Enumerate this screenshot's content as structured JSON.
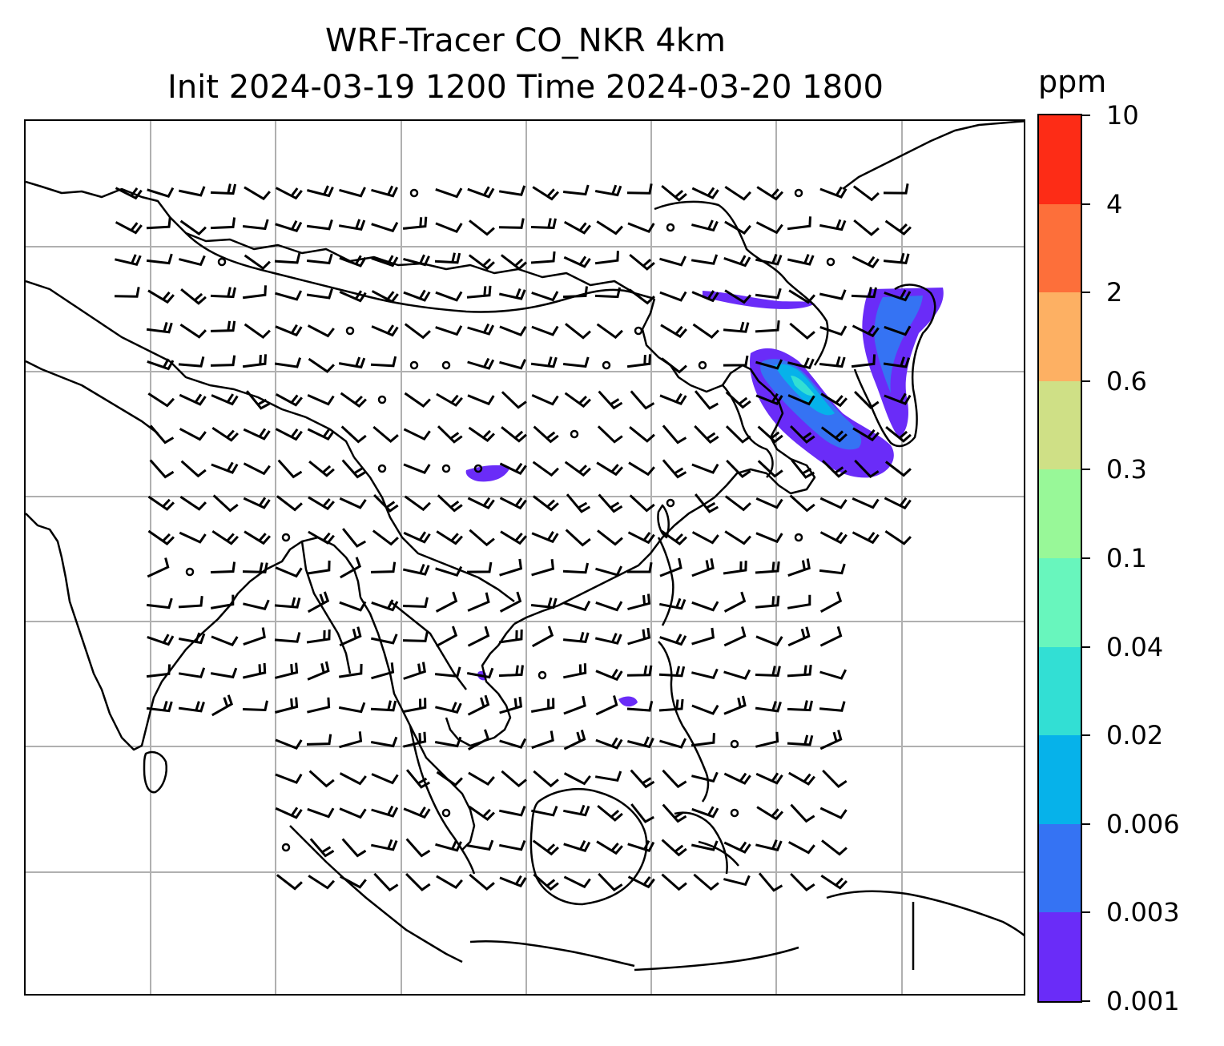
{
  "title": {
    "line1": "WRF-Tracer CO_NKR 4km",
    "line2": "Init 2024-03-19 1200 Time 2024-03-20 1800"
  },
  "colorbar": {
    "unit": "ppm",
    "levels": [
      "0.001",
      "0.003",
      "0.006",
      "0.02",
      "0.04",
      "0.1",
      "0.3",
      "0.6",
      "2",
      "4",
      "10"
    ],
    "colors": [
      "#6a2cf8",
      "#3573f3",
      "#06b2ea",
      "#32dfd4",
      "#68f6bd",
      "#98f898",
      "#cfe086",
      "#fdb063",
      "#fd6f3a",
      "#fd2c16"
    ]
  },
  "map": {
    "grid": true,
    "coastline_color": "#000000",
    "gridline_color": "#b0b0b0",
    "tracer_color": "#6a2cf8",
    "tracer_plume_core": "#06b2ea",
    "wind_barbs": true
  }
}
